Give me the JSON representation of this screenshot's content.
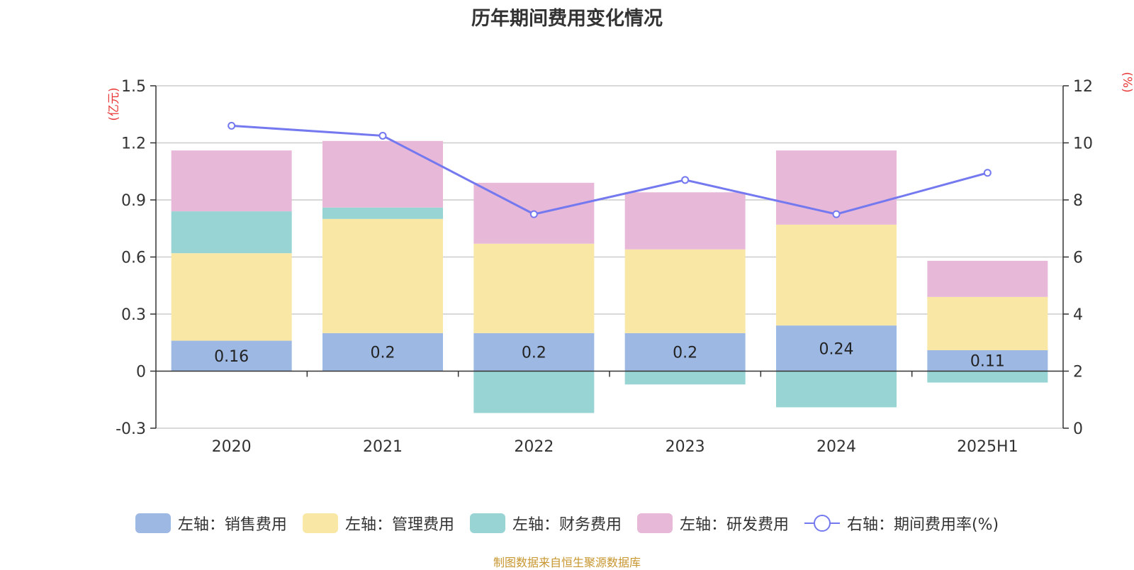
{
  "title": "历年期间费用变化情况",
  "source_note": "制图数据来自恒生聚源数据库",
  "chart_data": {
    "type": "bar",
    "stacked": true,
    "categories": [
      "2020",
      "2021",
      "2022",
      "2023",
      "2024",
      "2025H1"
    ],
    "left_axis": {
      "unit": "(亿元)",
      "ylim": [
        -0.3,
        1.5
      ],
      "ticks": [
        "1.5",
        "1.2",
        "0.9",
        "0.6",
        "0.3",
        "0",
        "-0.3"
      ],
      "tick_values": [
        1.5,
        1.2,
        0.9,
        0.6,
        0.3,
        0,
        -0.3
      ]
    },
    "right_axis": {
      "unit": "(%)",
      "ylim": [
        0,
        12
      ],
      "ticks": [
        "12",
        "10",
        "8",
        "6",
        "4",
        "2",
        "0"
      ],
      "tick_values": [
        12,
        10,
        8,
        6,
        4,
        2,
        0
      ]
    },
    "series": [
      {
        "name": "左轴：销售费用",
        "color": "#9db8e2",
        "values": [
          0.16,
          0.2,
          0.2,
          0.2,
          0.24,
          0.11
        ],
        "labels": [
          "0.16",
          "0.2",
          "0.2",
          "0.2",
          "0.24",
          "0.11"
        ]
      },
      {
        "name": "左轴：管理费用",
        "color": "#f9e7a6",
        "values": [
          0.46,
          0.6,
          0.47,
          0.44,
          0.53,
          0.28
        ]
      },
      {
        "name": "左轴：财务费用",
        "color": "#98d4d4",
        "values": [
          0.22,
          0.06,
          -0.22,
          -0.07,
          -0.19,
          -0.06
        ]
      },
      {
        "name": "左轴：研发费用",
        "color": "#e8b8d8",
        "values": [
          0.32,
          0.35,
          0.32,
          0.3,
          0.39,
          0.19
        ]
      }
    ],
    "line": {
      "name": "右轴：期间费用率(%)",
      "color": "#7479ef",
      "values": [
        10.6,
        10.25,
        7.5,
        8.7,
        7.5,
        8.95
      ]
    },
    "grid": true,
    "legend_position": "bottom"
  }
}
